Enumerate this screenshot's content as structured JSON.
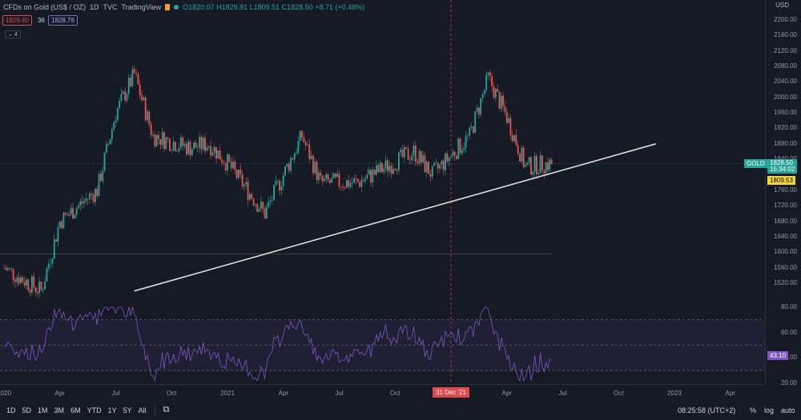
{
  "header": {
    "symbol_title": "CFDs on Gold (US$ / OZ)",
    "interval": "1D",
    "exchange": "TVC",
    "source": "TradingView",
    "ohlc": "O1820.07 H1829.91 L1809.51 C1828.50 +8.71 (+0.48%)",
    "sell_price": "1828.40",
    "spread": "36",
    "buy_price": "1828.76",
    "indicators_count": "4"
  },
  "price_axis": {
    "currency": "USD",
    "ticks": [
      "2200.00",
      "2160.00",
      "2120.00",
      "2080.00",
      "2040.00",
      "2000.00",
      "1960.00",
      "1920.00",
      "1880.00",
      "1840.00",
      "1760.00",
      "1720.00",
      "1680.00",
      "1640.00",
      "1600.00",
      "1560.00",
      "1520.00"
    ],
    "last_price_symbol": "GOLD",
    "last_price": "1828.50",
    "countdown": "15:34:02",
    "low_label": "1809.53"
  },
  "rsi_axis": {
    "ticks": [
      "80.00",
      "60.00",
      "40.00",
      "20.00"
    ],
    "value": "43.10"
  },
  "time_axis": {
    "ticks": [
      "2020",
      "Apr",
      "Jul",
      "Oct",
      "2021",
      "Apr",
      "Jul",
      "Oct",
      "Apr",
      "Jul",
      "Oct",
      "2023",
      "Apr"
    ],
    "crosshair_label": "31 Dec '21"
  },
  "bottom_bar": {
    "timeframes": [
      "1D",
      "5D",
      "1M",
      "3M",
      "6M",
      "YTD",
      "1Y",
      "5Y",
      "All"
    ],
    "clock": "08:25:58 (UTC+2)",
    "percent": "%",
    "log": "log",
    "auto": "auto"
  },
  "colors": {
    "background": "#161a25",
    "up": "#26a69a",
    "down": "#ef5350",
    "rsi": "#7e57c2",
    "trendline": "#e0e0e0"
  },
  "chart_data": {
    "type": "candlestick",
    "title": "CFDs on Gold (US$ / OZ)",
    "price_range": [
      1480,
      2220
    ],
    "rsi_range": [
      20,
      80
    ],
    "approx_path": [
      {
        "x": "2020-01",
        "close": 1560
      },
      {
        "x": "2020-03",
        "close": 1500
      },
      {
        "x": "2020-04",
        "close": 1680
      },
      {
        "x": "2020-06",
        "close": 1760
      },
      {
        "x": "2020-07",
        "close": 1960
      },
      {
        "x": "2020-08",
        "close": 2060
      },
      {
        "x": "2020-09",
        "close": 1900
      },
      {
        "x": "2020-11",
        "close": 1870
      },
      {
        "x": "2020-12",
        "close": 1880
      },
      {
        "x": "2021-01",
        "close": 1830
      },
      {
        "x": "2021-03",
        "close": 1700
      },
      {
        "x": "2021-05",
        "close": 1900
      },
      {
        "x": "2021-06",
        "close": 1780
      },
      {
        "x": "2021-08",
        "close": 1780
      },
      {
        "x": "2021-11",
        "close": 1860
      },
      {
        "x": "2021-12",
        "close": 1800
      },
      {
        "x": "2022-02",
        "close": 1900
      },
      {
        "x": "2022-03",
        "close": 2050
      },
      {
        "x": "2022-04",
        "close": 1950
      },
      {
        "x": "2022-05",
        "close": 1820
      },
      {
        "x": "2022-06",
        "close": 1828
      }
    ],
    "trendline": [
      {
        "x": "2020-08",
        "price": 1500
      },
      {
        "x": "2022-12",
        "price": 1880
      }
    ]
  }
}
